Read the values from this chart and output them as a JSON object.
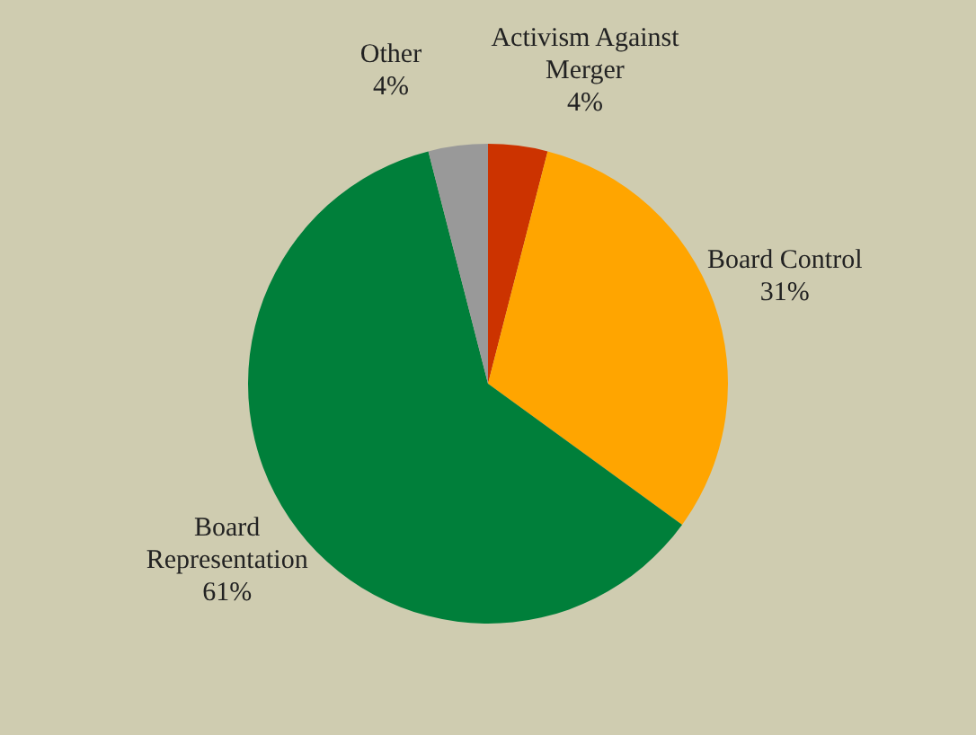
{
  "chart_data": {
    "type": "pie",
    "categories": [
      "Activism Against Merger",
      "Board Control",
      "Board Representation",
      "Other"
    ],
    "values": [
      4,
      31,
      61,
      4
    ],
    "colors": [
      "#cc3300",
      "#ffa500",
      "#007f3a",
      "#999999"
    ],
    "value_labels": [
      "4%",
      "31%",
      "61%",
      "4%"
    ],
    "legend": false
  }
}
